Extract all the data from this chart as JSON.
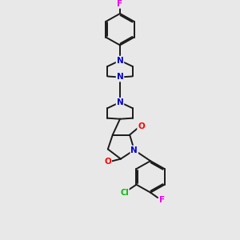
{
  "bg_color": "#e8e8e8",
  "bond_color": "#1a1a1a",
  "N_color": "#0000cc",
  "O_color": "#ff0000",
  "F_color": "#ee00ee",
  "Cl_color": "#00bb00",
  "bond_width": 1.4,
  "figsize": [
    3.0,
    3.0
  ],
  "dpi": 100,
  "xlim": [
    0,
    10
  ],
  "ylim": [
    0,
    10
  ]
}
